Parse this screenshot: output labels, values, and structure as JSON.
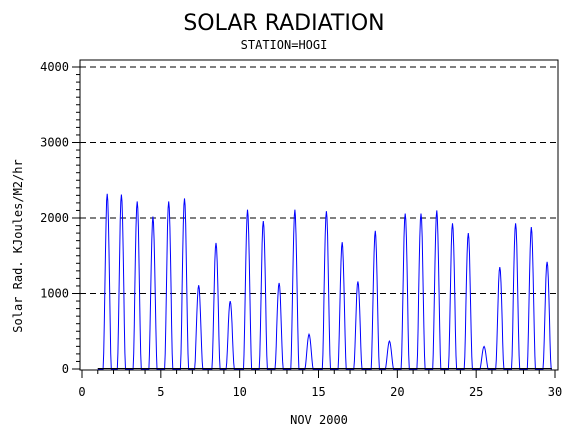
{
  "chart_data": {
    "type": "line",
    "title": "SOLAR RADIATION",
    "subtitle": "STATION=HOGI",
    "xlabel": "NOV 2000",
    "ylabel": "Solar Rad. KJoules/M2/hr",
    "xlim": [
      0,
      30
    ],
    "ylim": [
      0,
      4000
    ],
    "x_ticks": [
      0,
      5,
      10,
      15,
      20,
      25,
      30
    ],
    "x_tick_labels": [
      "0",
      "5",
      "10",
      "15",
      "20",
      "25",
      "30"
    ],
    "y_ticks": [
      0,
      1000,
      2000,
      3000,
      4000
    ],
    "y_tick_labels": [
      "0",
      "1000",
      "2000",
      "3000",
      "4000"
    ],
    "grid": "horizontal dashed at major y ticks",
    "series": [
      {
        "color": "#0000ff",
        "daily_peaks": [
          {
            "day": 1.6,
            "value": 2320
          },
          {
            "day": 2.5,
            "value": 2310
          },
          {
            "day": 3.5,
            "value": 2220
          },
          {
            "day": 4.5,
            "value": 2020
          },
          {
            "day": 5.5,
            "value": 2220
          },
          {
            "day": 6.5,
            "value": 2260
          },
          {
            "day": 7.4,
            "value": 1110
          },
          {
            "day": 8.5,
            "value": 1670
          },
          {
            "day": 9.4,
            "value": 900
          },
          {
            "day": 10.5,
            "value": 2110
          },
          {
            "day": 11.5,
            "value": 1960
          },
          {
            "day": 12.5,
            "value": 1140
          },
          {
            "day": 13.5,
            "value": 2110
          },
          {
            "day": 14.4,
            "value": 460
          },
          {
            "day": 15.5,
            "value": 2090
          },
          {
            "day": 16.5,
            "value": 1680
          },
          {
            "day": 17.5,
            "value": 1160
          },
          {
            "day": 18.6,
            "value": 1830
          },
          {
            "day": 19.5,
            "value": 370
          },
          {
            "day": 20.5,
            "value": 2060
          },
          {
            "day": 21.5,
            "value": 2060
          },
          {
            "day": 22.5,
            "value": 2100
          },
          {
            "day": 23.5,
            "value": 1930
          },
          {
            "day": 24.5,
            "value": 1800
          },
          {
            "day": 25.5,
            "value": 300
          },
          {
            "day": 26.5,
            "value": 1350
          },
          {
            "day": 27.5,
            "value": 1930
          },
          {
            "day": 28.5,
            "value": 1880
          },
          {
            "day": 29.5,
            "value": 1420
          }
        ]
      },
      {
        "color": "#000000",
        "description_value": 0,
        "daily_peaks": []
      }
    ]
  }
}
